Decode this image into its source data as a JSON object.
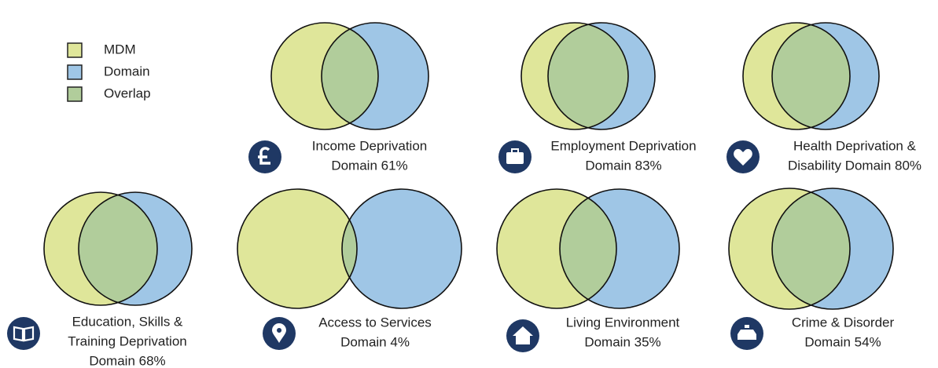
{
  "legend": [
    {
      "label": "MDM",
      "color": "#dfe69a"
    },
    {
      "label": "Domain",
      "color": "#9fc6e6"
    },
    {
      "label": "Overlap",
      "color": "#b1cd9b"
    }
  ],
  "panels": [
    {
      "lines": [
        "Income Deprivation",
        "Domain 61%"
      ]
    },
    {
      "lines": [
        "Employment Deprivation",
        "Domain 83%"
      ]
    },
    {
      "lines": [
        "Health Deprivation &",
        "Disability Domain 80%"
      ]
    },
    {
      "lines": [
        "Education, Skills &",
        "Training Deprivation",
        "Domain 68%"
      ]
    },
    {
      "lines": [
        "Access to Services",
        "Domain 4%"
      ]
    },
    {
      "lines": [
        "Living Environment",
        "Domain 35%"
      ]
    },
    {
      "lines": [
        "Crime & Disorder",
        "Domain 54%"
      ]
    }
  ]
}
